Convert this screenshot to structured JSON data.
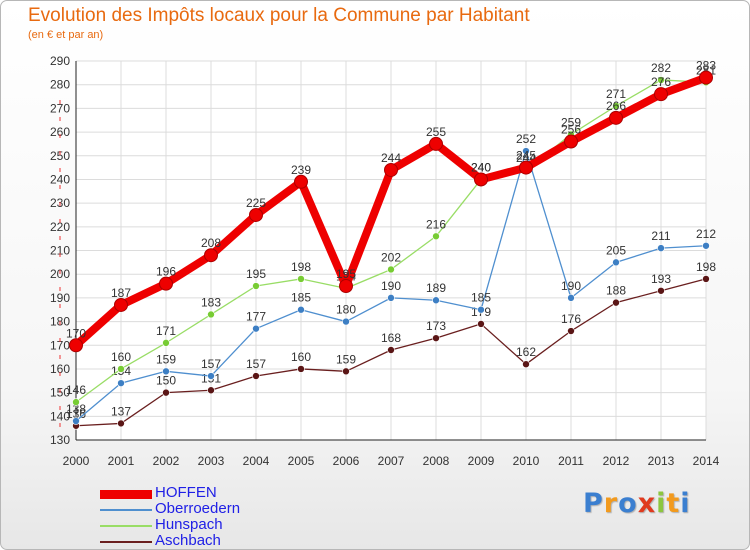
{
  "title": "Evolution des Impôts locaux pour la Commune par Habitant",
  "subtitle": "(en € et par an)",
  "logo_text": "Proxiti",
  "chart_data": {
    "type": "line",
    "title": "Evolution des Impôts locaux pour la Commune par Habitant",
    "subtitle": "(en € et par an)",
    "xlabel": "",
    "ylabel": "",
    "ylim": [
      130,
      290
    ],
    "yticks": [
      130,
      140,
      150,
      160,
      170,
      180,
      190,
      200,
      210,
      220,
      230,
      240,
      250,
      260,
      270,
      280,
      290
    ],
    "grid": true,
    "legend_position": "bottom-left",
    "x": [
      "2000",
      "2001",
      "2002",
      "2003",
      "2004",
      "2005",
      "2006",
      "2007",
      "2008",
      "2009",
      "2010",
      "2011",
      "2012",
      "2013",
      "2014"
    ],
    "series": [
      {
        "name": "HOFFEN",
        "color": "#ee0000",
        "values": [
          170,
          187,
          196,
          208,
          225,
          239,
          195,
          244,
          255,
          240,
          245,
          256,
          266,
          276,
          283
        ]
      },
      {
        "name": "Oberroedern",
        "color": "#4f8fcf",
        "values": [
          138,
          154,
          159,
          157,
          177,
          185,
          180,
          190,
          189,
          185,
          252,
          190,
          205,
          211,
          212
        ]
      },
      {
        "name": "Hunspach",
        "color": "#99dd66",
        "values": [
          146,
          160,
          171,
          183,
          195,
          198,
          194,
          202,
          216,
          240,
          244,
          259,
          271,
          282,
          281
        ]
      },
      {
        "name": "Aschbach",
        "color": "#6a1f1f",
        "values": [
          136,
          137,
          150,
          151,
          157,
          160,
          159,
          168,
          173,
          179,
          162,
          176,
          188,
          193,
          198
        ]
      }
    ]
  }
}
